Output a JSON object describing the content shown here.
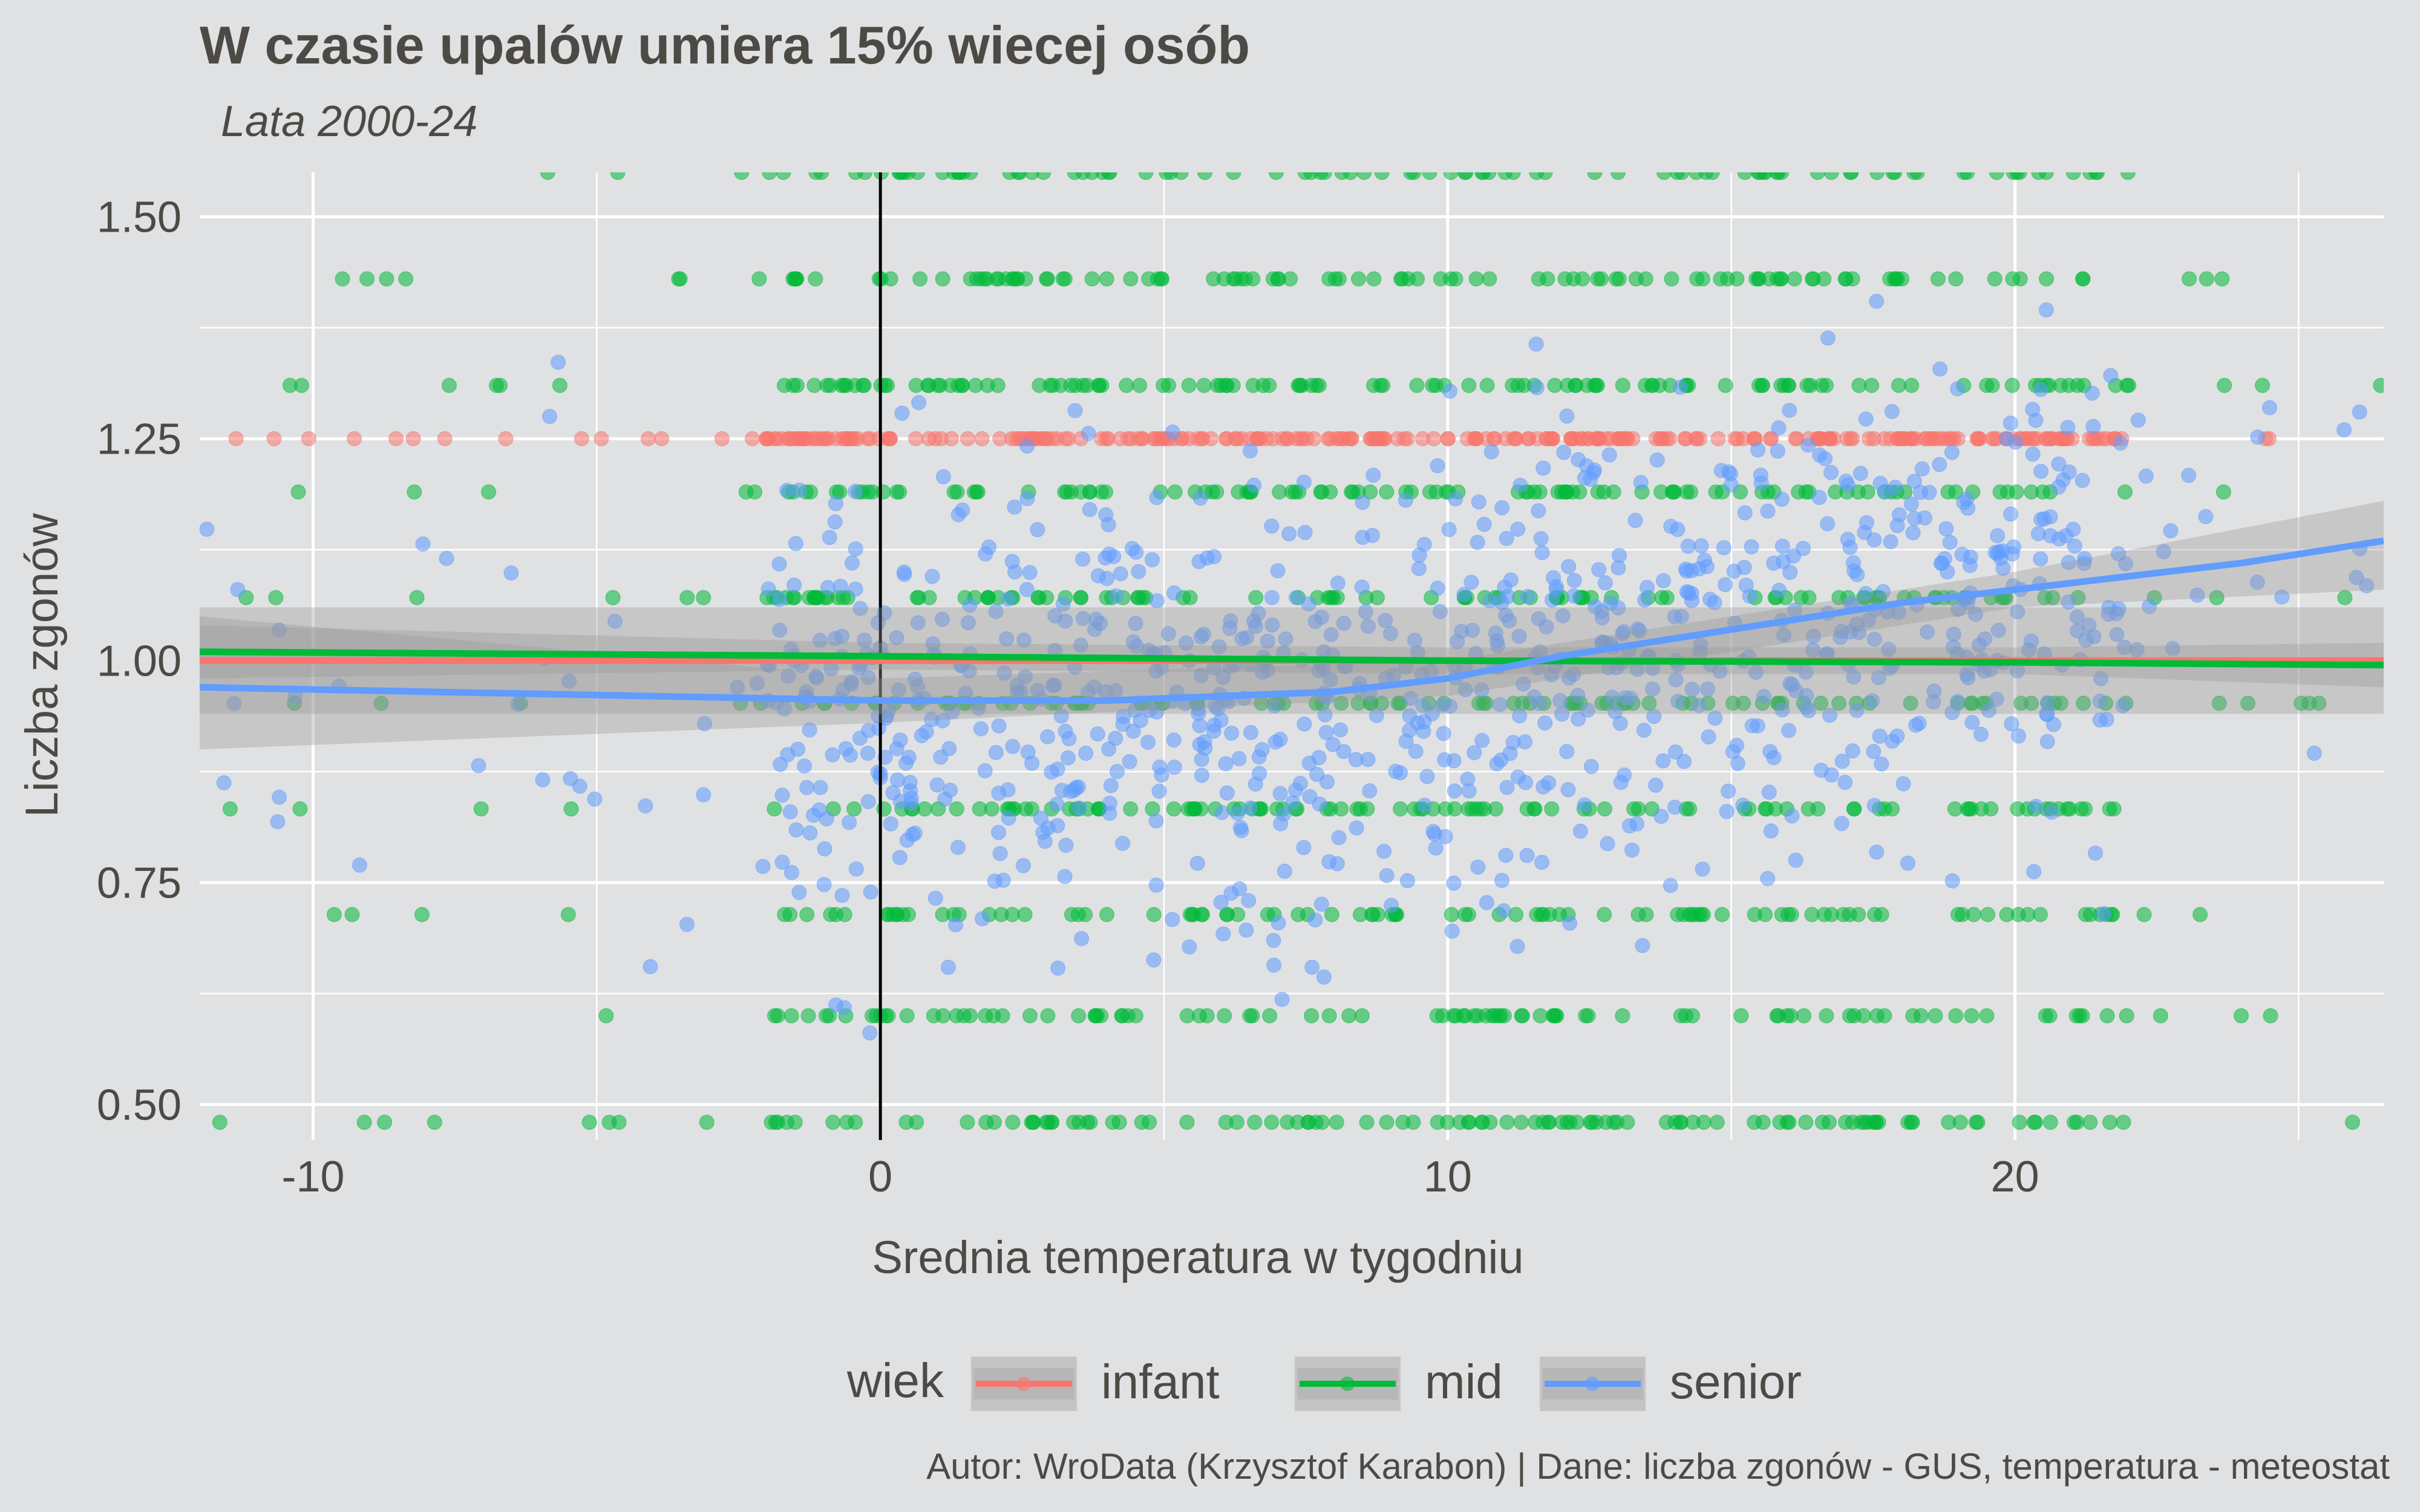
{
  "chart_data": {
    "type": "scatter",
    "title": "W czasie upalów umiera 15% wiecej osób",
    "subtitle": "Lata 2000-24",
    "xlabel": "Srednia temperatura w tygodniu",
    "ylabel": "Liczba zgonów",
    "caption": "Autor: WroData (Krzysztof Karabon) | Dane: liczba zgonów - GUS, temperatura - meteostat",
    "xlim": [
      -12,
      26.5
    ],
    "ylim": [
      0.46,
      1.55
    ],
    "x_ticks": [
      {
        "value": -10,
        "label": "-10"
      },
      {
        "value": 0,
        "label": "0"
      },
      {
        "value": 10,
        "label": "10"
      },
      {
        "value": 20,
        "label": "20"
      }
    ],
    "y_ticks": [
      {
        "value": 0.5,
        "label": "0.50"
      },
      {
        "value": 0.75,
        "label": "0.75"
      },
      {
        "value": 1.0,
        "label": "1.00"
      },
      {
        "value": 1.25,
        "label": "1.25"
      },
      {
        "value": 1.5,
        "label": "1.50"
      }
    ],
    "vline": 0,
    "grid": true,
    "legend": {
      "title": "wiek",
      "placement": "bottom"
    },
    "series": [
      {
        "name": "infant",
        "color": "#F8766D",
        "levels": [
          1.25
        ],
        "x_range": [
          -12,
          25
        ],
        "n_points": 300,
        "smooth": [
          [
            -12,
            1.0
          ],
          [
            0,
            1.0
          ],
          [
            10,
            1.0
          ],
          [
            20,
            1.0
          ],
          [
            26.5,
            1.0
          ]
        ],
        "band": [
          [
            -12,
            0.94,
            1.06
          ],
          [
            26.5,
            0.94,
            1.06
          ]
        ]
      },
      {
        "name": "mid",
        "color": "#00BA38",
        "levels": [
          0.48,
          0.6,
          0.714,
          0.833,
          0.952,
          1.071,
          1.19,
          1.31,
          1.43,
          1.55
        ],
        "x_range": [
          -12,
          26.5
        ],
        "n_points": 1100,
        "smooth": [
          [
            -12,
            1.01
          ],
          [
            0,
            1.005
          ],
          [
            10,
            1.0
          ],
          [
            20,
            0.998
          ],
          [
            26.5,
            0.995
          ]
        ],
        "band": [
          [
            -12,
            0.98,
            1.04
          ],
          [
            0,
            0.99,
            1.02
          ],
          [
            10,
            0.985,
            1.015
          ],
          [
            20,
            0.985,
            1.015
          ],
          [
            26.5,
            0.97,
            1.02
          ]
        ]
      },
      {
        "name": "senior",
        "color": "#619CFF",
        "levels": [],
        "x_range": [
          -12,
          26.5
        ],
        "n_points": 1000,
        "smooth": [
          [
            -12,
            0.97
          ],
          [
            -8,
            0.965
          ],
          [
            -4,
            0.96
          ],
          [
            0,
            0.955
          ],
          [
            4,
            0.955
          ],
          [
            8,
            0.965
          ],
          [
            10,
            0.98
          ],
          [
            12,
            1.005
          ],
          [
            14,
            1.025
          ],
          [
            16,
            1.045
          ],
          [
            18,
            1.065
          ],
          [
            20,
            1.08
          ],
          [
            22,
            1.095
          ],
          [
            24,
            1.11
          ],
          [
            26.5,
            1.135
          ]
        ],
        "band": [
          [
            -12,
            0.9,
            1.05
          ],
          [
            0,
            0.93,
            0.98
          ],
          [
            10,
            0.96,
            1.0
          ],
          [
            20,
            1.06,
            1.1
          ],
          [
            26.5,
            1.08,
            1.18
          ]
        ]
      }
    ]
  }
}
